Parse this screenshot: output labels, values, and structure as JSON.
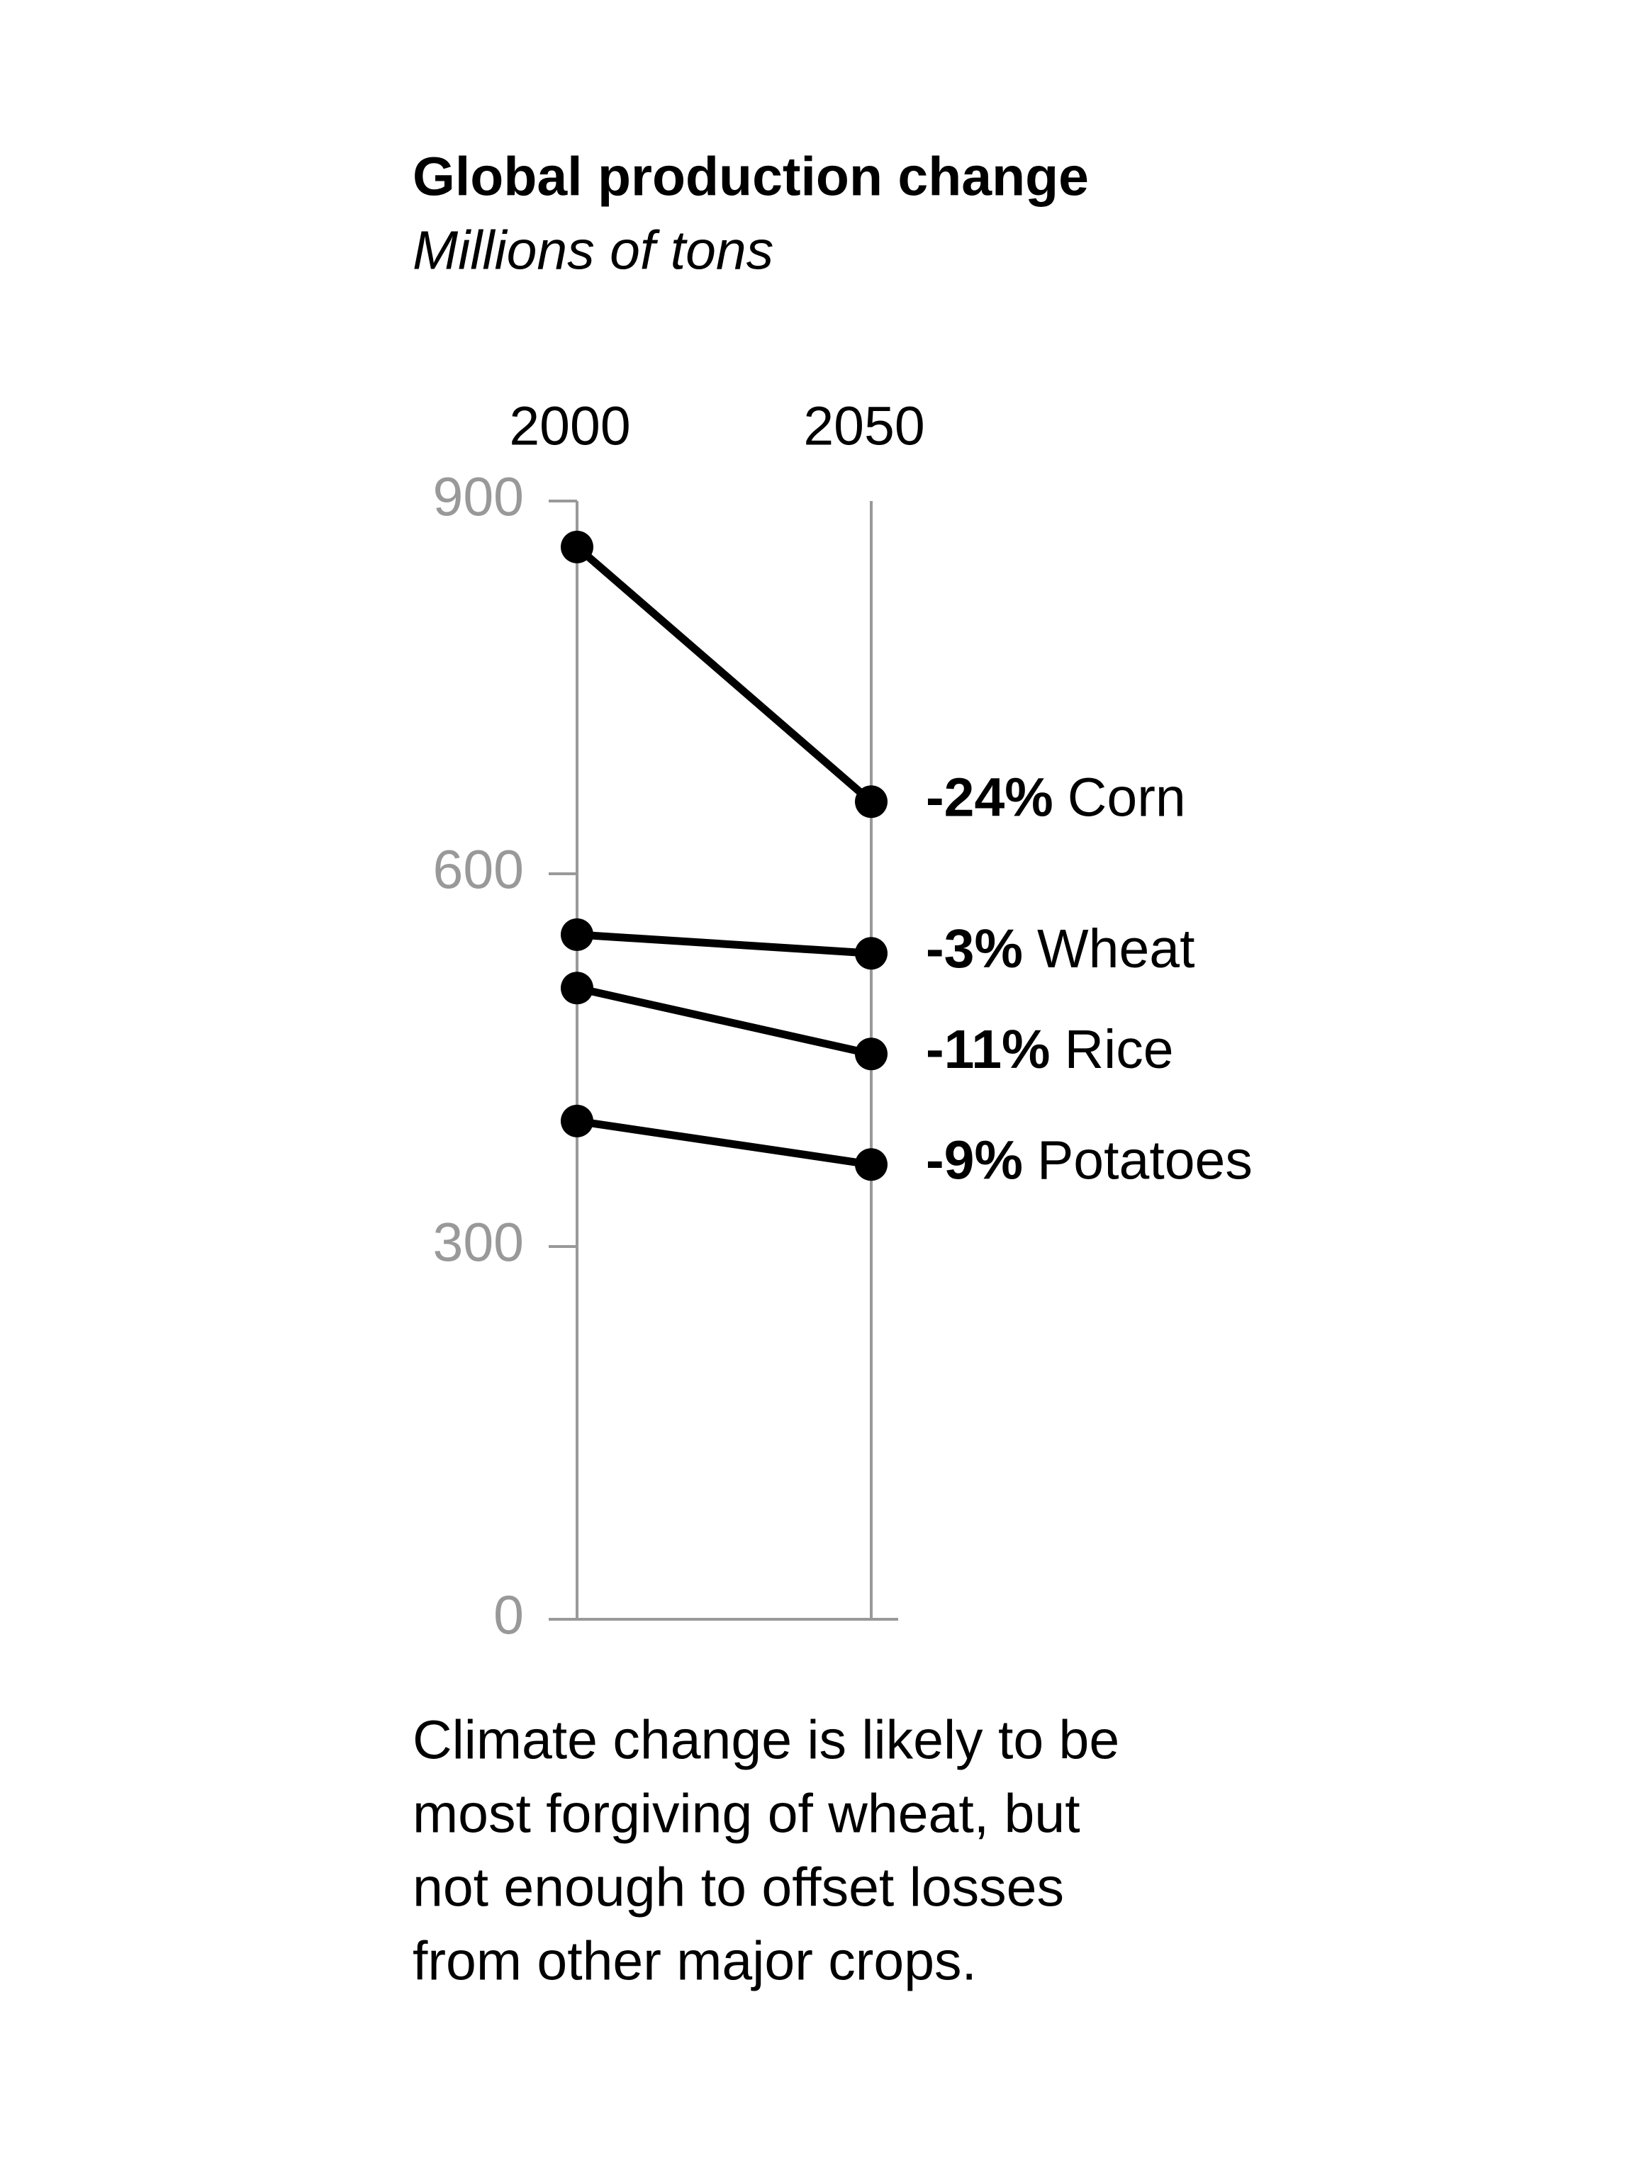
{
  "chart_data": {
    "type": "slope",
    "title": "Global production change",
    "subtitle": "Millions of tons",
    "categories": [
      "2000",
      "2050"
    ],
    "series": [
      {
        "name": "Corn",
        "color": "#000000",
        "values": [
          863,
          658
        ],
        "change_label": "-24%"
      },
      {
        "name": "Wheat",
        "color": "#000000",
        "values": [
          551,
          536
        ],
        "change_label": "-3%"
      },
      {
        "name": "Rice",
        "color": "#000000",
        "values": [
          508,
          455
        ],
        "change_label": "-11%"
      },
      {
        "name": "Potatoes",
        "color": "#000000",
        "values": [
          401,
          366
        ],
        "change_label": "-9%"
      }
    ],
    "ylim": [
      0,
      900
    ],
    "yticks": [
      0,
      300,
      600,
      900
    ],
    "note": [
      "Climate change is likely to be",
      "most forgiving of wheat, but",
      "not enough to offset losses",
      "from other major crops."
    ]
  }
}
